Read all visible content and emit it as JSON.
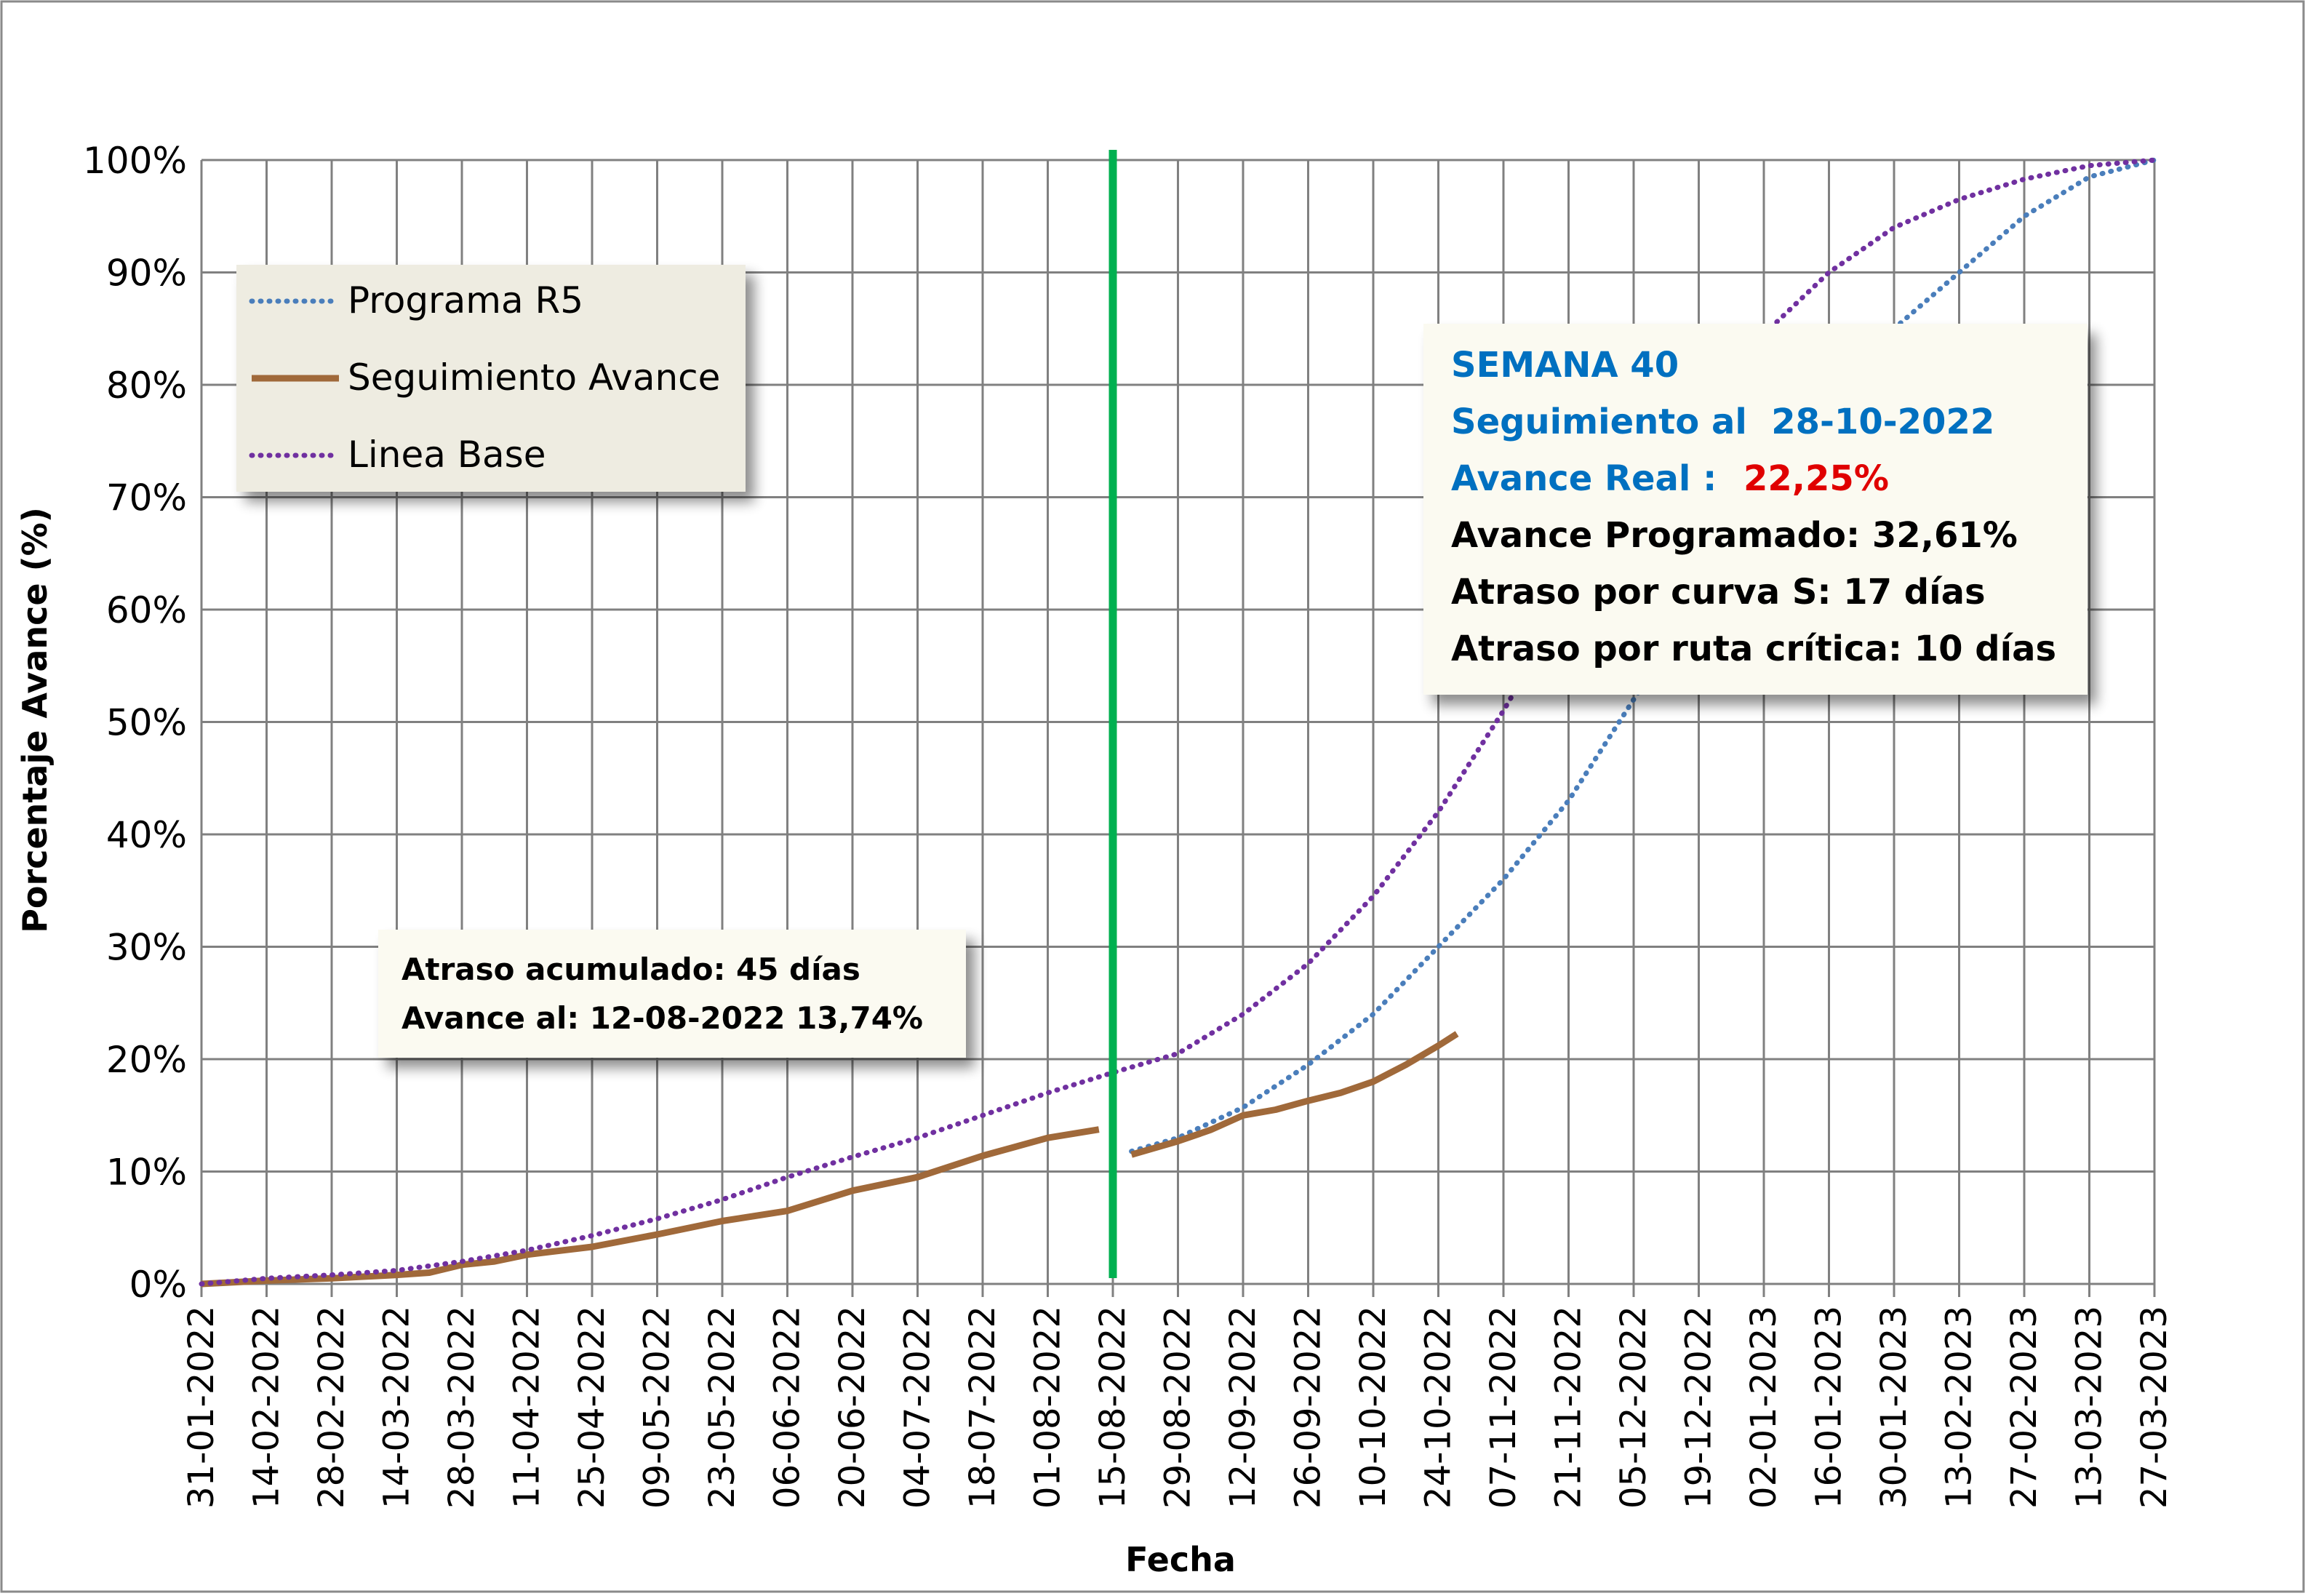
{
  "chart_data": {
    "type": "line",
    "xlabel": "Fecha",
    "ylabel": "Porcentaje Avance (%)",
    "ylim": [
      0,
      100
    ],
    "yticks": [
      "0%",
      "10%",
      "20%",
      "30%",
      "40%",
      "50%",
      "60%",
      "70%",
      "80%",
      "90%",
      "100%"
    ],
    "xlim": [
      "31-01-2022",
      "27-03-2023"
    ],
    "xticks": [
      "31-01-2022",
      "14-02-2022",
      "28-02-2022",
      "14-03-2022",
      "28-03-2022",
      "11-04-2022",
      "25-04-2022",
      "09-05-2022",
      "23-05-2022",
      "06-06-2022",
      "20-06-2022",
      "04-07-2022",
      "18-07-2022",
      "01-08-2022",
      "15-08-2022",
      "29-08-2022",
      "12-09-2022",
      "26-09-2022",
      "10-10-2022",
      "24-10-2022",
      "07-11-2022",
      "21-11-2022",
      "05-12-2022",
      "19-12-2022",
      "02-01-2023",
      "16-01-2023",
      "30-01-2023",
      "13-02-2023",
      "27-02-2023",
      "13-03-2023",
      "27-03-2023"
    ],
    "grid": true,
    "legend_position": "top-left",
    "series": [
      {
        "name": "Programa R5",
        "color": "#4a7ebb",
        "style": "dotted",
        "points": [
          [
            "19-08-2022",
            11.8
          ],
          [
            "29-08-2022",
            13
          ],
          [
            "12-09-2022",
            15.7
          ],
          [
            "26-09-2022",
            19.5
          ],
          [
            "10-10-2022",
            24
          ],
          [
            "24-10-2022",
            30
          ],
          [
            "07-11-2022",
            36
          ],
          [
            "21-11-2022",
            43
          ],
          [
            "05-12-2022",
            52
          ],
          [
            "19-12-2022",
            61
          ],
          [
            "02-01-2023",
            70
          ],
          [
            "16-01-2023",
            78
          ],
          [
            "30-01-2023",
            85
          ],
          [
            "13-02-2023",
            90
          ],
          [
            "27-02-2023",
            95
          ],
          [
            "13-03-2023",
            98.5
          ],
          [
            "27-03-2023",
            100
          ]
        ]
      },
      {
        "name": "Seguimiento Avance",
        "color": "#a0693a",
        "style": "solid",
        "points": [
          [
            "31-01-2022",
            0
          ],
          [
            "14-02-2022",
            0.3
          ],
          [
            "28-02-2022",
            0.5
          ],
          [
            "14-03-2022",
            0.8
          ],
          [
            "21-03-2022",
            1.0
          ],
          [
            "28-03-2022",
            1.7
          ],
          [
            "04-04-2022",
            2.0
          ],
          [
            "11-04-2022",
            2.6
          ],
          [
            "25-04-2022",
            3.3
          ],
          [
            "09-05-2022",
            4.4
          ],
          [
            "23-05-2022",
            5.6
          ],
          [
            "06-06-2022",
            6.5
          ],
          [
            "20-06-2022",
            8.3
          ],
          [
            "04-07-2022",
            9.5
          ],
          [
            "18-07-2022",
            11.4
          ],
          [
            "01-08-2022",
            13.0
          ],
          [
            "12-08-2022",
            13.74
          ]
        ]
      },
      {
        "name": "Seguimiento Avance post",
        "color": "#a0693a",
        "style": "solid",
        "points": [
          [
            "19-08-2022",
            11.5
          ],
          [
            "29-08-2022",
            12.7
          ],
          [
            "05-09-2022",
            13.7
          ],
          [
            "12-09-2022",
            15.0
          ],
          [
            "19-09-2022",
            15.5
          ],
          [
            "26-09-2022",
            16.3
          ],
          [
            "03-10-2022",
            17.0
          ],
          [
            "10-10-2022",
            18.0
          ],
          [
            "17-10-2022",
            19.5
          ],
          [
            "24-10-2022",
            21.2
          ],
          [
            "28-10-2022",
            22.25
          ]
        ]
      },
      {
        "name": "Linea Base",
        "color": "#7030a0",
        "style": "dotted",
        "points": [
          [
            "31-01-2022",
            0
          ],
          [
            "14-02-2022",
            0.5
          ],
          [
            "28-02-2022",
            0.8
          ],
          [
            "14-03-2022",
            1.2
          ],
          [
            "28-03-2022",
            2.0
          ],
          [
            "11-04-2022",
            3.0
          ],
          [
            "25-04-2022",
            4.3
          ],
          [
            "09-05-2022",
            5.8
          ],
          [
            "23-05-2022",
            7.5
          ],
          [
            "06-06-2022",
            9.5
          ],
          [
            "20-06-2022",
            11.3
          ],
          [
            "04-07-2022",
            13.0
          ],
          [
            "18-07-2022",
            15.0
          ],
          [
            "01-08-2022",
            17.0
          ],
          [
            "15-08-2022",
            18.8
          ],
          [
            "29-08-2022",
            20.5
          ],
          [
            "12-09-2022",
            24
          ],
          [
            "26-09-2022",
            28.5
          ],
          [
            "10-10-2022",
            34.5
          ],
          [
            "24-10-2022",
            42
          ],
          [
            "07-11-2022",
            51
          ],
          [
            "21-11-2022",
            61
          ],
          [
            "05-12-2022",
            70
          ],
          [
            "19-12-2022",
            78
          ],
          [
            "02-01-2023",
            84.5
          ],
          [
            "16-01-2023",
            90
          ],
          [
            "30-01-2023",
            94
          ],
          [
            "13-02-2023",
            96.5
          ],
          [
            "27-02-2023",
            98.3
          ],
          [
            "13-03-2023",
            99.5
          ],
          [
            "27-03-2023",
            100
          ]
        ]
      }
    ],
    "markers": [
      {
        "type": "vertical-line",
        "x": "15-08-2022",
        "color": "#00b050"
      }
    ],
    "annotations": {
      "status_box": {
        "week": "SEMANA 40",
        "tracking": "Seguimiento al  28-10-2022",
        "real_label": "Avance Real : ",
        "real_value": "22,25%",
        "programmed": "Avance Programado: 32,61%",
        "delay_curve": "Atraso por curva S: 17 días",
        "delay_path": "Atraso por ruta crítica: 10 días"
      },
      "accum_box": {
        "line1": "Atraso acumulado: 45 días",
        "line2": "Avance al: 12-08-2022 13,74%"
      }
    },
    "colors": {
      "title_blue": "#0070c0",
      "value_red": "#e00000",
      "grid": "#808080",
      "legend_bg": "#eeece1",
      "box_bg": "#fbfaf1"
    }
  }
}
